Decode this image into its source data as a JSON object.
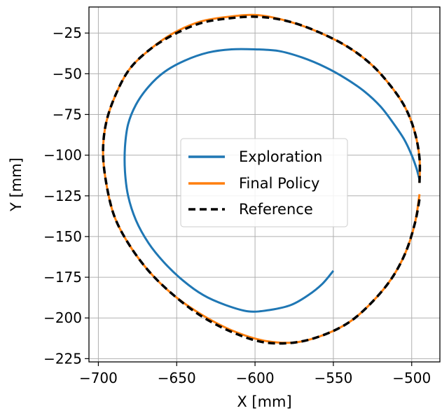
{
  "chart_data": {
    "type": "line",
    "title": "",
    "xlabel": "X [mm]",
    "ylabel": "Y [mm]",
    "xlim": [
      -706,
      -482
    ],
    "ylim": [
      -227,
      -9
    ],
    "xticks": [
      -700,
      -650,
      -600,
      -550,
      -500
    ],
    "yticks": [
      -25,
      -50,
      -75,
      -100,
      -125,
      -150,
      -175,
      -200,
      -225
    ],
    "xtick_labels": [
      "−700",
      "−650",
      "−600",
      "−550",
      "−500"
    ],
    "ytick_labels": [
      "−25",
      "−50",
      "−75",
      "−100",
      "−125",
      "−150",
      "−175",
      "−200",
      "−225"
    ],
    "grid": true,
    "legend_position": "center",
    "series": [
      {
        "name": "Exploration",
        "color": "#1f77b4",
        "style": "solid",
        "x": [
          -495,
          -497,
          -500,
          -505,
          -512,
          -520,
          -530,
          -542,
          -555,
          -570,
          -585,
          -600,
          -615,
          -630,
          -645,
          -658,
          -668,
          -676,
          -681,
          -683,
          -683,
          -681,
          -676,
          -668,
          -658,
          -646,
          -633,
          -619,
          -604,
          -590,
          -577,
          -566,
          -557,
          -550
        ],
        "y": [
          -115,
          -108,
          -100,
          -90,
          -80,
          -70,
          -61,
          -53,
          -46,
          -40,
          -36,
          -35,
          -35,
          -37,
          -42,
          -49,
          -58,
          -69,
          -81,
          -95,
          -110,
          -125,
          -140,
          -154,
          -166,
          -177,
          -186,
          -192,
          -196,
          -195,
          -192,
          -186,
          -179,
          -171
        ]
      },
      {
        "name": "Final Policy",
        "color": "#ff7f0e",
        "style": "solid",
        "x": [
          -495,
          -495,
          -498,
          -504,
          -513,
          -525,
          -540,
          -558,
          -578,
          -598,
          -617,
          -635,
          -652,
          -667,
          -680,
          -689,
          -695,
          -697,
          -695,
          -690,
          -681,
          -668,
          -652,
          -634,
          -614,
          -594,
          -574,
          -555,
          -539,
          -525,
          -513,
          -504,
          -498,
          -495
        ],
        "y": [
          -117,
          -102,
          -86,
          -71,
          -58,
          -45,
          -34,
          -25,
          -18,
          -14,
          -15,
          -18,
          -25,
          -35,
          -47,
          -63,
          -80,
          -98,
          -117,
          -137,
          -154,
          -171,
          -186,
          -198,
          -208,
          -214,
          -215,
          -210,
          -202,
          -190,
          -176,
          -160,
          -142,
          -124
        ]
      },
      {
        "name": "Reference",
        "color": "#000000",
        "style": "dashed",
        "x": [
          -495,
          -495,
          -498,
          -504,
          -513,
          -525,
          -540,
          -558,
          -578,
          -598,
          -617,
          -635,
          -652,
          -667,
          -680,
          -689,
          -695,
          -697,
          -695,
          -690,
          -681,
          -668,
          -652,
          -634,
          -614,
          -594,
          -574,
          -555,
          -539,
          -525,
          -513,
          -504,
          -498,
          -495
        ],
        "y": [
          -117,
          -102,
          -86,
          -71,
          -58,
          -45,
          -34,
          -25,
          -18,
          -15,
          -16,
          -19,
          -26,
          -35,
          -47,
          -63,
          -80,
          -98,
          -117,
          -137,
          -154,
          -171,
          -186,
          -199,
          -209,
          -215,
          -215,
          -210,
          -202,
          -190,
          -176,
          -160,
          -142,
          -127
        ]
      }
    ]
  }
}
